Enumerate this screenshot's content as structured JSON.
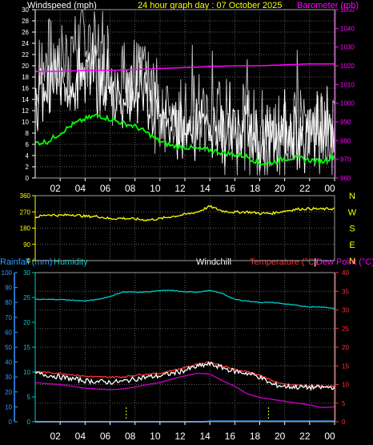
{
  "header": {
    "left_label": "Windspeed (mph)",
    "title": "24 hour graph day : 07 October 2025",
    "right_label": "Barometer (mb)"
  },
  "lower_header": {
    "rainfall_label": "Rainfall (mm)",
    "humidity_label": "Humidity",
    "windchill_label": "Windchill",
    "temperature_label": "Temperature (°C)",
    "dewpoint_label": "Dew Point (°C)"
  },
  "colors": {
    "windspeed": "#ffffff",
    "gust": "#b8b8b8",
    "average": "#00ff00",
    "barometer": "#ff00ff",
    "direction": "#ffff00",
    "humidity": "#00cccc",
    "temperature": "#ff3333",
    "windchill": "#ffffff",
    "dewpoint": "#cc00cc",
    "rainfall": "#3399ff",
    "axis": "#ffffff",
    "grid": "#606060"
  },
  "chart_data": [
    {
      "type": "line",
      "name": "wind-barometer",
      "x_ticks": [
        "02",
        "04",
        "06",
        "08",
        "10",
        "12",
        "14",
        "16",
        "18",
        "20",
        "22",
        "00"
      ],
      "x_range_hours": [
        0,
        24
      ],
      "y_left": {
        "label": "Windspeed (mph)",
        "min": 0,
        "max": 30,
        "ticks": [
          0,
          2,
          4,
          6,
          8,
          10,
          12,
          14,
          16,
          18,
          20,
          22,
          24,
          26,
          28,
          30
        ]
      },
      "y_right": {
        "label": "Barometer (mb)",
        "min": 960,
        "max": 1050,
        "ticks": [
          960,
          970,
          980,
          990,
          1000,
          1010,
          1020,
          1030,
          1040,
          1050
        ]
      },
      "series": [
        {
          "key": "gust",
          "axis": "left",
          "color": "gust",
          "style": "spiky",
          "values": [
            [
              0,
              18
            ],
            [
              1,
              22
            ],
            [
              2,
              21
            ],
            [
              3,
              23
            ],
            [
              4,
              25
            ],
            [
              5,
              22
            ],
            [
              6,
              20
            ],
            [
              7,
              18
            ],
            [
              8,
              19
            ],
            [
              9,
              16
            ],
            [
              10,
              14
            ],
            [
              11,
              12
            ],
            [
              12,
              12
            ],
            [
              13,
              12
            ],
            [
              14,
              12
            ],
            [
              15,
              11
            ],
            [
              16,
              11
            ],
            [
              17,
              10
            ],
            [
              18,
              9
            ],
            [
              19,
              9
            ],
            [
              20,
              10
            ],
            [
              21,
              10
            ],
            [
              22,
              10
            ],
            [
              23,
              10
            ],
            [
              24,
              11
            ]
          ]
        },
        {
          "key": "windspeed",
          "axis": "left",
          "color": "windspeed",
          "style": "spiky",
          "values": [
            [
              0,
              14
            ],
            [
              1,
              16
            ],
            [
              2,
              17
            ],
            [
              3,
              18
            ],
            [
              4,
              20
            ],
            [
              5,
              17
            ],
            [
              6,
              16
            ],
            [
              7,
              15
            ],
            [
              8,
              16
            ],
            [
              9,
              13
            ],
            [
              10,
              11
            ],
            [
              11,
              9
            ],
            [
              12,
              10
            ],
            [
              13,
              10
            ],
            [
              14,
              9
            ],
            [
              15,
              9
            ],
            [
              16,
              9
            ],
            [
              17,
              8
            ],
            [
              18,
              7
            ],
            [
              19,
              7
            ],
            [
              20,
              8
            ],
            [
              21,
              8
            ],
            [
              22,
              8
            ],
            [
              23,
              8
            ],
            [
              24,
              9
            ]
          ]
        },
        {
          "key": "average",
          "axis": "left",
          "color": "average",
          "style": "smooth",
          "values": [
            [
              0,
              6.2
            ],
            [
              1,
              6.5
            ],
            [
              2,
              8
            ],
            [
              3,
              9.5
            ],
            [
              4,
              10.5
            ],
            [
              5,
              11.2
            ],
            [
              6,
              10.5
            ],
            [
              7,
              9.8
            ],
            [
              8,
              9.2
            ],
            [
              9,
              8
            ],
            [
              10,
              6.5
            ],
            [
              11,
              5.7
            ],
            [
              12,
              5.5
            ],
            [
              13,
              5.2
            ],
            [
              14,
              5
            ],
            [
              15,
              4.5
            ],
            [
              16,
              4.2
            ],
            [
              17,
              3.8
            ],
            [
              18,
              2.6
            ],
            [
              19,
              2.7
            ],
            [
              20,
              3.5
            ],
            [
              21,
              3.6
            ],
            [
              22,
              3.2
            ],
            [
              23,
              2.9
            ],
            [
              24,
              4
            ]
          ]
        },
        {
          "key": "barometer",
          "axis": "right",
          "color": "barometer",
          "style": "smooth",
          "values": [
            [
              0,
              1017
            ],
            [
              2,
              1017
            ],
            [
              4,
              1017.5
            ],
            [
              6,
              1017.5
            ],
            [
              8,
              1018
            ],
            [
              10,
              1018.5
            ],
            [
              12,
              1019
            ],
            [
              14,
              1019.5
            ],
            [
              16,
              1020
            ],
            [
              18,
              1020
            ],
            [
              20,
              1020.5
            ],
            [
              22,
              1021
            ],
            [
              24,
              1021
            ]
          ]
        }
      ]
    },
    {
      "type": "line",
      "name": "wind-direction",
      "x_range_hours": [
        0,
        24
      ],
      "y_left": {
        "min": 0,
        "max": 360,
        "ticks": [
          0,
          90,
          180,
          270,
          360
        ]
      },
      "y_right_labels": [
        "N",
        "W",
        "S",
        "E",
        "N"
      ],
      "series": [
        {
          "key": "direction",
          "color": "direction",
          "style": "noisy",
          "values": [
            [
              0,
              240
            ],
            [
              1,
              255
            ],
            [
              2,
              250
            ],
            [
              3,
              255
            ],
            [
              4,
              245
            ],
            [
              5,
              245
            ],
            [
              6,
              232
            ],
            [
              7,
              235
            ],
            [
              8,
              230
            ],
            [
              9,
              225
            ],
            [
              10,
              232
            ],
            [
              11,
              245
            ],
            [
              12,
              255
            ],
            [
              13,
              270
            ],
            [
              14,
              300
            ],
            [
              15,
              275
            ],
            [
              16,
              268
            ],
            [
              17,
              270
            ],
            [
              18,
              262
            ],
            [
              19,
              262
            ],
            [
              20,
              275
            ],
            [
              21,
              285
            ],
            [
              22,
              288
            ],
            [
              23,
              285
            ],
            [
              24,
              288
            ]
          ]
        }
      ]
    },
    {
      "type": "line",
      "name": "temperature-humidity",
      "x_ticks": [
        "02",
        "04",
        "06",
        "08",
        "10",
        "12",
        "14",
        "16",
        "18",
        "20",
        "22",
        "00"
      ],
      "x_range_hours": [
        0,
        24
      ],
      "y_left_outer": {
        "label": "Rainfall (mm)",
        "min": 0,
        "max": 100,
        "ticks": [
          0,
          10,
          20,
          30,
          40,
          50,
          60,
          70,
          80,
          90,
          100
        ]
      },
      "y_left_inner": {
        "label": "Humidity",
        "min": 0,
        "max": 30,
        "ticks": [
          0,
          5,
          10,
          15,
          20,
          25,
          30
        ]
      },
      "y_right": {
        "label": "Temperature (°C)",
        "min": 0,
        "max": 40,
        "ticks": [
          0,
          5,
          10,
          15,
          20,
          25,
          30,
          35,
          40
        ]
      },
      "series": [
        {
          "key": "humidity",
          "axis": "left_outer",
          "color": "humidity",
          "style": "smooth",
          "values": [
            [
              0,
              82
            ],
            [
              2,
              82
            ],
            [
              4,
              81
            ],
            [
              5,
              82
            ],
            [
              6,
              84
            ],
            [
              7,
              87
            ],
            [
              8,
              87
            ],
            [
              9,
              87
            ],
            [
              10,
              88
            ],
            [
              11,
              88
            ],
            [
              12,
              87
            ],
            [
              13,
              87
            ],
            [
              14,
              88
            ],
            [
              15,
              86
            ],
            [
              16,
              82
            ],
            [
              17,
              81
            ],
            [
              18,
              80
            ],
            [
              19,
              80
            ],
            [
              20,
              79
            ],
            [
              21,
              78
            ],
            [
              22,
              77
            ],
            [
              23,
              77
            ],
            [
              24,
              76
            ]
          ]
        },
        {
          "key": "temperature",
          "axis": "right",
          "color": "temperature",
          "style": "smooth",
          "values": [
            [
              0,
              13.5
            ],
            [
              1,
              13.2
            ],
            [
              2,
              13
            ],
            [
              3,
              12.6
            ],
            [
              4,
              12.2
            ],
            [
              5,
              12
            ],
            [
              6,
              12
            ],
            [
              7,
              12
            ],
            [
              8,
              12.5
            ],
            [
              9,
              12.8
            ],
            [
              10,
              13
            ],
            [
              11,
              13.8
            ],
            [
              12,
              14.5
            ],
            [
              13,
              15.5
            ],
            [
              14,
              16
            ],
            [
              15,
              15
            ],
            [
              16,
              14
            ],
            [
              17,
              13.5
            ],
            [
              18,
              12.5
            ],
            [
              19,
              11
            ],
            [
              20,
              10
            ],
            [
              21,
              9.8
            ],
            [
              22,
              9.6
            ],
            [
              23,
              9.5
            ],
            [
              24,
              9.5
            ]
          ]
        },
        {
          "key": "windchill",
          "axis": "right",
          "color": "windchill",
          "style": "noisy",
          "values": [
            [
              0,
              13
            ],
            [
              1,
              12.5
            ],
            [
              2,
              12
            ],
            [
              3,
              11.5
            ],
            [
              4,
              11
            ],
            [
              5,
              10.8
            ],
            [
              6,
              10.6
            ],
            [
              7,
              10.8
            ],
            [
              8,
              11.5
            ],
            [
              9,
              12
            ],
            [
              10,
              12.3
            ],
            [
              11,
              13
            ],
            [
              12,
              13.8
            ],
            [
              13,
              14.8
            ],
            [
              14,
              15.5
            ],
            [
              15,
              14.5
            ],
            [
              16,
              13.5
            ],
            [
              17,
              13
            ],
            [
              18,
              12
            ],
            [
              19,
              10
            ],
            [
              20,
              9.5
            ],
            [
              21,
              9.3
            ],
            [
              22,
              9.2
            ],
            [
              23,
              9.2
            ],
            [
              24,
              9.3
            ]
          ]
        },
        {
          "key": "dewpoint",
          "axis": "right",
          "color": "dewpoint",
          "style": "smooth",
          "values": [
            [
              0,
              10.5
            ],
            [
              1,
              10.2
            ],
            [
              2,
              10
            ],
            [
              3,
              9.5
            ],
            [
              4,
              9
            ],
            [
              5,
              8.8
            ],
            [
              6,
              8.6
            ],
            [
              7,
              8.8
            ],
            [
              8,
              9.3
            ],
            [
              9,
              10
            ],
            [
              10,
              10.5
            ],
            [
              11,
              11.5
            ],
            [
              12,
              12.3
            ],
            [
              13,
              13
            ],
            [
              14,
              12.8
            ],
            [
              15,
              11
            ],
            [
              16,
              9.5
            ],
            [
              17,
              7.5
            ],
            [
              18,
              6.5
            ],
            [
              19,
              6
            ],
            [
              20,
              5.5
            ],
            [
              21,
              5
            ],
            [
              22,
              4.5
            ],
            [
              23,
              3.8
            ],
            [
              24,
              4
            ]
          ]
        },
        {
          "key": "rainfall",
          "axis": "left_outer",
          "color": "rainfall",
          "style": "step",
          "values": [
            [
              0,
              0
            ],
            [
              13.5,
              0
            ],
            [
              14,
              0.3
            ],
            [
              24,
              0.3
            ]
          ]
        }
      ],
      "markers_hours": [
        7.3,
        18.7
      ]
    }
  ]
}
